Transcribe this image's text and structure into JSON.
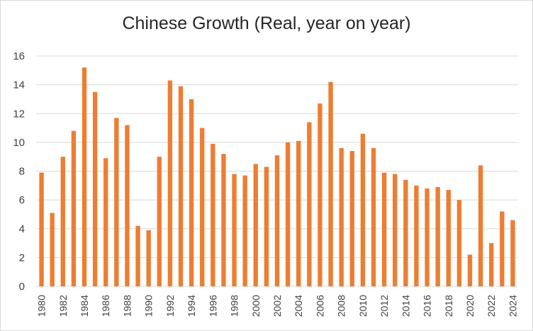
{
  "chart_data": {
    "type": "bar",
    "title": "Chinese Growth (Real, year on year)",
    "xlabel": "",
    "ylabel": "",
    "ylim": [
      0,
      16
    ],
    "yticks": [
      0,
      2,
      4,
      6,
      8,
      10,
      12,
      14,
      16
    ],
    "grid": true,
    "bar_color": "#ED7D31",
    "grid_color": "#d9d9d9",
    "categories": [
      "1980",
      "1981",
      "1982",
      "1983",
      "1984",
      "1985",
      "1986",
      "1987",
      "1988",
      "1989",
      "1990",
      "1991",
      "1992",
      "1993",
      "1994",
      "1995",
      "1996",
      "1997",
      "1998",
      "1999",
      "2000",
      "2001",
      "2002",
      "2003",
      "2004",
      "2005",
      "2006",
      "2007",
      "2008",
      "2009",
      "2010",
      "2011",
      "2012",
      "2013",
      "2014",
      "2015",
      "2016",
      "2017",
      "2018",
      "2019",
      "2020",
      "2021",
      "2022",
      "2023",
      "2024"
    ],
    "tick_labels": [
      "1980",
      "1982",
      "1984",
      "1986",
      "1988",
      "1990",
      "1992",
      "1994",
      "1996",
      "1998",
      "2000",
      "2002",
      "2004",
      "2006",
      "2008",
      "2010",
      "2012",
      "2014",
      "2016",
      "2018",
      "2020",
      "2022",
      "2024"
    ],
    "values": [
      7.9,
      5.1,
      9.0,
      10.8,
      15.2,
      13.5,
      8.9,
      11.7,
      11.2,
      4.2,
      3.9,
      9.0,
      14.3,
      13.9,
      13.0,
      11.0,
      9.9,
      9.2,
      7.8,
      7.7,
      8.5,
      8.3,
      9.1,
      10.0,
      10.1,
      11.4,
      12.7,
      14.2,
      9.6,
      9.4,
      10.6,
      9.6,
      7.9,
      7.8,
      7.4,
      7.0,
      6.8,
      6.9,
      6.7,
      6.0,
      2.2,
      8.4,
      3.0,
      5.2,
      4.6
    ]
  }
}
